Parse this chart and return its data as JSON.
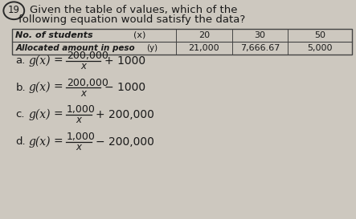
{
  "bg_color": "#cdc8bf",
  "title_line1": "Given the table of values, which of the",
  "title_line2": "following equation would satisfy the data?",
  "number_circle": "19",
  "table_col1_row1": "No. of students",
  "table_col1_row1b": "(x)",
  "table_col1_row2": "Allocated amount in peso",
  "table_col1_row2b": "(y)",
  "table_x_vals": [
    "20",
    "30",
    "50"
  ],
  "table_y_vals": [
    "21,000",
    "7,666.67",
    "5,000"
  ],
  "options": [
    {
      "label": "a.",
      "gx": "g(x)",
      "num": "200,000",
      "denom": "x",
      "op": "+ 1000"
    },
    {
      "label": "b.",
      "gx": "g(x)",
      "num": "200,000",
      "denom": "x",
      "op": "− 1000"
    },
    {
      "label": "c.",
      "gx": "g(x)",
      "num": "1,000",
      "denom": "x",
      "op": "+ 200,000"
    },
    {
      "label": "d.",
      "gx": "g(x)",
      "num": "1,000",
      "denom": "x",
      "op": "− 200,000"
    }
  ],
  "text_color": "#1a1a1a",
  "table_border_color": "#444444"
}
